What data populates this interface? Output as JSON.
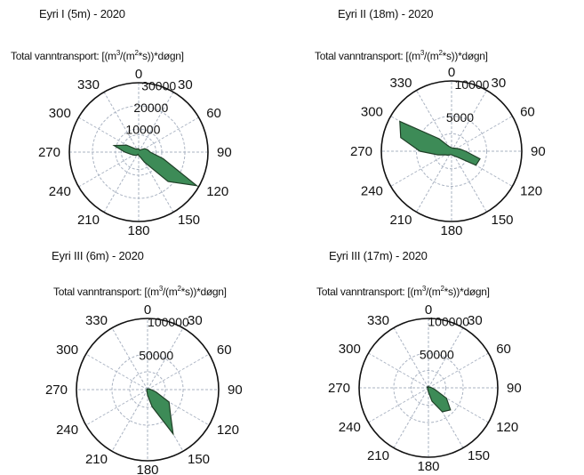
{
  "colors": {
    "rose_fill": "#3d8b57",
    "rose_stroke": "#1f3f27",
    "grid": "#aab3c2",
    "frame": "#111111"
  },
  "chart_data": [
    {
      "type": "polar-area",
      "site": "Eyri I (5m) - 2020",
      "title_prefix": "Total vanntransport: [(m",
      "title_mid": "/(m",
      "title_suffix": "*s))*døgn]",
      "title_sup1": "3",
      "title_sup2": "2",
      "angle_ticks": [
        "0",
        "30",
        "60",
        "90",
        "120",
        "150",
        "180",
        "210",
        "240",
        "270",
        "300",
        "330"
      ],
      "radial_ticks": [
        "10000",
        "20000",
        "30000"
      ],
      "rmax": 30000,
      "directions": [
        0,
        15,
        30,
        45,
        60,
        75,
        90,
        105,
        120,
        135,
        150,
        165,
        180,
        195,
        210,
        225,
        240,
        255,
        270,
        285,
        300,
        315,
        330,
        345
      ],
      "values": [
        1500,
        1000,
        1000,
        1500,
        3000,
        4000,
        5000,
        11000,
        29000,
        18000,
        5000,
        2000,
        1500,
        1000,
        1500,
        2000,
        2500,
        3500,
        6000,
        11000,
        6000,
        2000,
        1500,
        1500
      ]
    },
    {
      "type": "polar-area",
      "site": "Eyri II (18m) - 2020",
      "title_prefix": "Total vanntransport: [(m",
      "title_mid": "/(m",
      "title_suffix": "*s))*døgn]",
      "title_sup1": "3",
      "title_sup2": "2",
      "angle_ticks": [
        "0",
        "30",
        "60",
        "90",
        "120",
        "150",
        "180",
        "210",
        "240",
        "270",
        "300",
        "330"
      ],
      "radial_ticks": [
        "5000",
        "10000"
      ],
      "rmax": 10000,
      "directions": [
        0,
        15,
        30,
        45,
        60,
        75,
        90,
        105,
        120,
        135,
        150,
        165,
        180,
        195,
        210,
        225,
        240,
        255,
        270,
        285,
        300,
        315,
        330,
        345
      ],
      "values": [
        500,
        500,
        500,
        600,
        800,
        1200,
        2000,
        4200,
        4000,
        1200,
        800,
        600,
        500,
        500,
        600,
        800,
        1000,
        2000,
        4500,
        7500,
        8500,
        2500,
        800,
        600
      ]
    },
    {
      "type": "polar-area",
      "site": "Eyri III (6m) - 2020",
      "title_prefix": "Total vanntransport: [(m",
      "title_mid": "/(m",
      "title_suffix": "*s))*døgn]",
      "title_sup1": "3",
      "title_sup2": "2",
      "angle_ticks": [
        "0",
        "30",
        "60",
        "90",
        "120",
        "150",
        "180",
        "210",
        "240",
        "270",
        "300",
        "330"
      ],
      "radial_ticks": [
        "50000",
        "100000"
      ],
      "rmax": 100000,
      "directions": [
        0,
        15,
        30,
        45,
        60,
        75,
        90,
        105,
        120,
        135,
        150,
        165,
        180,
        195,
        210,
        225,
        240,
        255,
        270,
        285,
        300,
        315,
        330,
        345
      ],
      "values": [
        1000,
        1000,
        1000,
        1000,
        2000,
        3000,
        5000,
        12000,
        35000,
        45000,
        72000,
        25000,
        8000,
        3000,
        2000,
        1000,
        1000,
        1000,
        1000,
        1000,
        1000,
        1000,
        1000,
        1000
      ]
    },
    {
      "type": "polar-area",
      "site": "Eyri III (17m) - 2020",
      "title_prefix": "Total vanntransport: [(m",
      "title_mid": "/(m",
      "title_suffix": "*s))*døgn]",
      "title_sup1": "3",
      "title_sup2": "2",
      "angle_ticks": [
        "0",
        "30",
        "60",
        "90",
        "120",
        "150",
        "180",
        "210",
        "240",
        "270",
        "300",
        "330"
      ],
      "radial_ticks": [
        "50000",
        "100000"
      ],
      "rmax": 100000,
      "directions": [
        0,
        15,
        30,
        45,
        60,
        75,
        90,
        105,
        120,
        135,
        150,
        165,
        180,
        195,
        210,
        225,
        240,
        255,
        270,
        285,
        300,
        315,
        330,
        345
      ],
      "values": [
        2000,
        1000,
        1000,
        1000,
        2000,
        3000,
        5000,
        10000,
        30000,
        45000,
        40000,
        20000,
        6000,
        3000,
        2000,
        1000,
        1000,
        1000,
        1000,
        2000,
        2000,
        2000,
        1500,
        1500
      ]
    }
  ]
}
